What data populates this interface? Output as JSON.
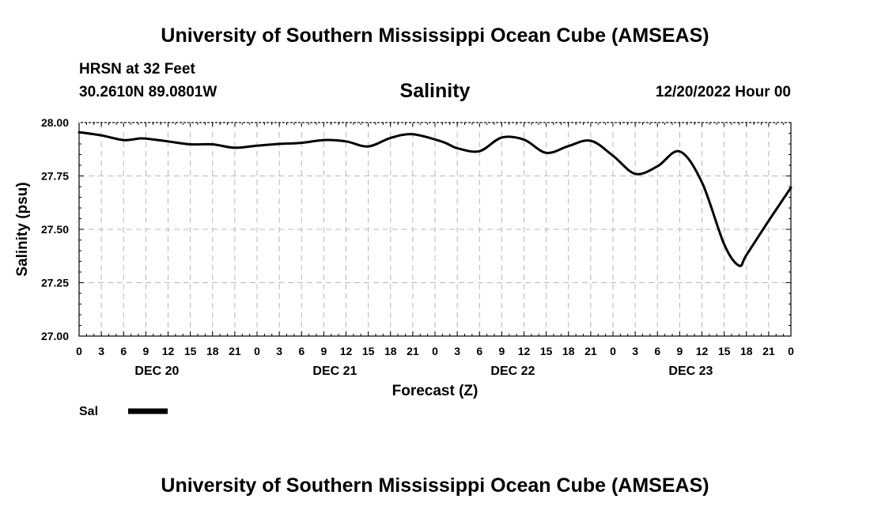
{
  "header": {
    "top_title": "University of Southern Mississippi Ocean Cube (AMSEAS)",
    "bottom_title": "University of Southern Mississippi Ocean Cube (AMSEAS)",
    "station": "HRSN at 32 Feet",
    "coords": "30.2610N  89.0801W",
    "date_hour": "12/20/2022 Hour 00"
  },
  "legend": {
    "label": "Sal",
    "color": "#000000"
  },
  "chart_data": {
    "type": "line",
    "title": "Salinity",
    "xlabel": "Forecast (Z)",
    "ylabel": "Salinity (psu)",
    "ylim": [
      27.0,
      28.0
    ],
    "yticks": [
      "27.00",
      "27.25",
      "27.50",
      "27.75",
      "28.00"
    ],
    "xlim": [
      0,
      96
    ],
    "xtick_labels": [
      "0",
      "3",
      "6",
      "9",
      "12",
      "15",
      "18",
      "21",
      "0",
      "3",
      "6",
      "9",
      "12",
      "15",
      "18",
      "21",
      "0",
      "3",
      "6",
      "9",
      "12",
      "15",
      "18",
      "21",
      "0",
      "3",
      "6",
      "9",
      "12",
      "15",
      "18",
      "21",
      "0"
    ],
    "day_labels": [
      {
        "text": "DEC 20",
        "hour": 10.5
      },
      {
        "text": "DEC 21",
        "hour": 34.5
      },
      {
        "text": "DEC 22",
        "hour": 58.5
      },
      {
        "text": "DEC 23",
        "hour": 82.5
      }
    ],
    "grid": true,
    "series": [
      {
        "name": "Sal",
        "x": [
          0,
          3,
          6,
          8,
          9,
          12,
          15,
          18,
          21,
          24,
          27,
          30,
          33,
          36,
          39,
          42,
          45,
          49,
          51,
          54,
          57,
          60,
          63,
          66,
          69,
          72,
          75,
          78,
          81,
          84,
          87,
          89,
          90,
          93,
          96
        ],
        "y": [
          27.955,
          27.94,
          27.918,
          27.925,
          27.925,
          27.912,
          27.898,
          27.898,
          27.882,
          27.892,
          27.9,
          27.905,
          27.918,
          27.912,
          27.888,
          27.928,
          27.945,
          27.91,
          27.88,
          27.866,
          27.93,
          27.92,
          27.858,
          27.89,
          27.915,
          27.845,
          27.76,
          27.795,
          27.865,
          27.72,
          27.43,
          27.33,
          27.38,
          27.54,
          27.695
        ]
      }
    ]
  }
}
